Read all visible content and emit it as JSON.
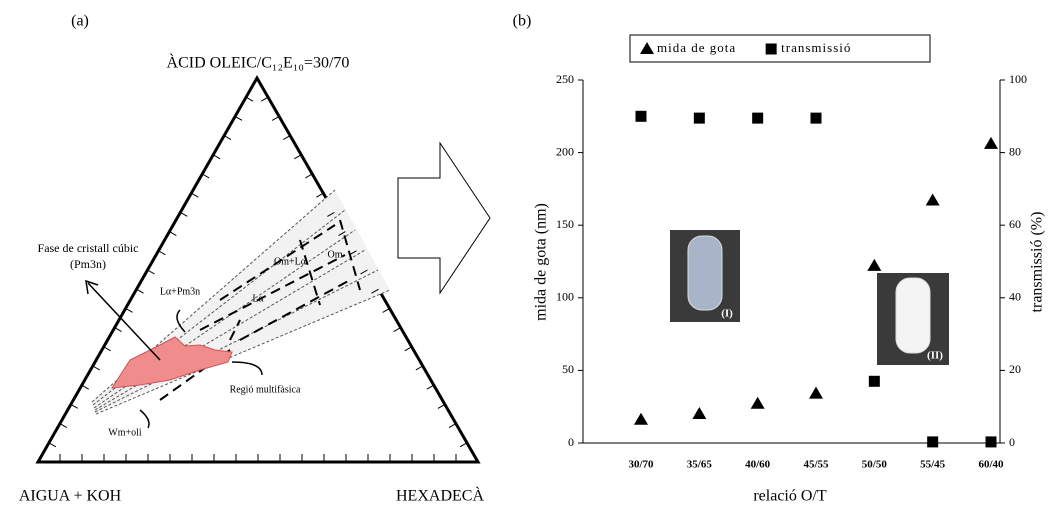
{
  "diagram": {
    "panel_label": "(a)",
    "top_vertex": "ÀCID OLEIC/C₁₂E₁₀=30/70",
    "left_vertex": "AIGUA + KOH",
    "right_vertex": "HEXADECÀ",
    "labels": [
      "Fase de cristall cúbic",
      "(Pm3n)",
      "Lα+Pm3n",
      "Lα",
      "Om+Lα",
      "Om",
      "Regió multifàsica",
      "Wm+oli"
    ]
  },
  "chart_data": {
    "type": "scatter",
    "panel_label": "(b)",
    "x_label": "relació O/T",
    "y_label": "mida de gota (nm)",
    "y2_label": "transmissió (%)",
    "categories": [
      "30/70",
      "35/65",
      "40/60",
      "45/55",
      "50/50",
      "55/45",
      "60/40"
    ],
    "series": [
      {
        "name": "mida de gota",
        "color": "#000000",
        "marker": "triangle",
        "values": [
          16,
          20,
          27,
          34,
          122,
          167,
          206
        ]
      },
      {
        "name": "transmissió",
        "color": "#000000",
        "marker": "square",
        "axis": "y2",
        "values": [
          90,
          89.5,
          89.5,
          89.5,
          17,
          0.3,
          0.3
        ]
      }
    ],
    "ylim": [
      0,
      250
    ],
    "yticks": [
      0,
      50,
      100,
      150,
      200,
      250
    ],
    "y2lim": [
      0,
      100
    ],
    "y2ticks": [
      0,
      20,
      40,
      60,
      80,
      100
    ],
    "legend": "top",
    "annotations": [
      "(I)",
      "(II)"
    ]
  }
}
